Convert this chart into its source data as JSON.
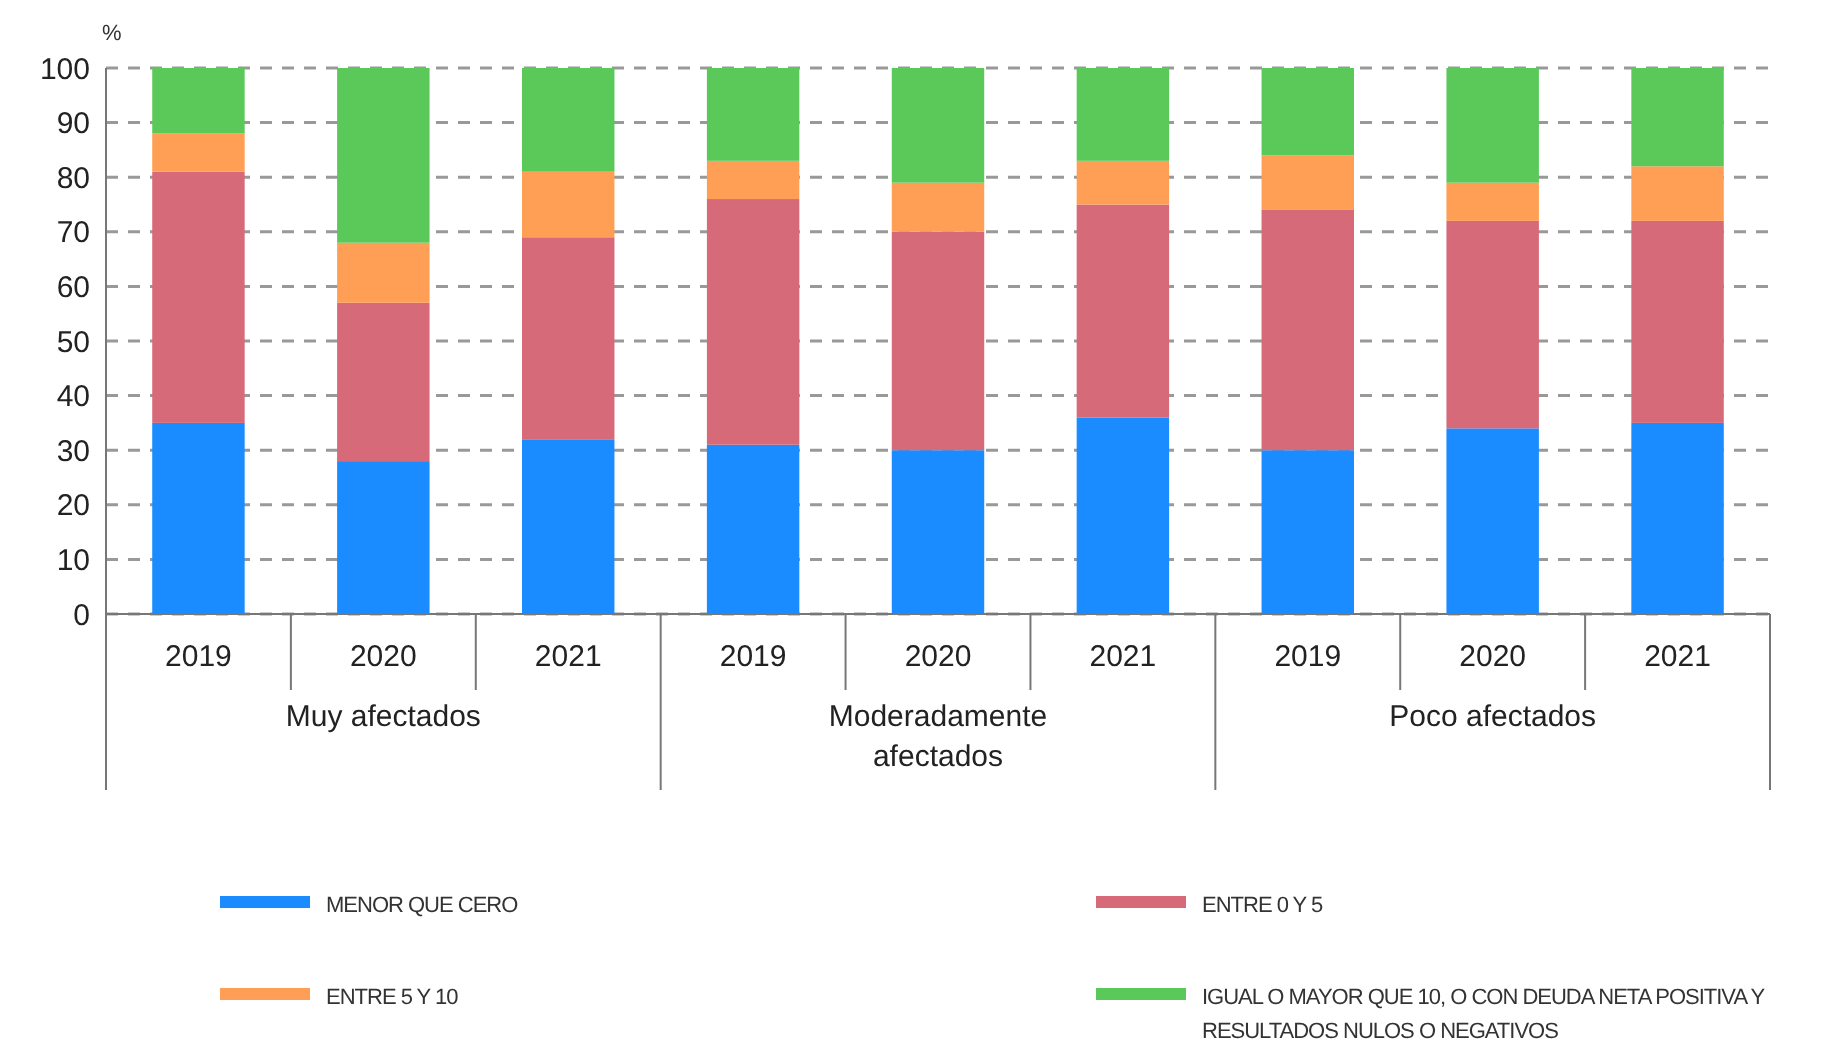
{
  "chart_data": {
    "type": "bar",
    "stacked": true,
    "ylabel": "%",
    "categories": [
      "2019",
      "2020",
      "2021",
      "2019",
      "2020",
      "2021",
      "2019",
      "2020",
      "2021"
    ],
    "series": [
      {
        "name": "MENOR QUE CERO",
        "color": "#1a8cff",
        "values": [
          35,
          28,
          32,
          31,
          30,
          36,
          30,
          34,
          35
        ]
      },
      {
        "name": "ENTRE 0 Y 5",
        "color": "#d66a78",
        "values": [
          46,
          29,
          37,
          45,
          40,
          39,
          44,
          38,
          37
        ]
      },
      {
        "name": "ENTRE 5 Y 10",
        "color": "#ff9f55",
        "values": [
          7,
          11,
          12,
          7,
          9,
          8,
          10,
          7,
          10
        ]
      },
      {
        "name": "IGUAL O MAYOR QUE 10, O CON DEUDA NETA POSITIVA Y RESULTADOS NULOS O NEGATIVOS",
        "color": "#5bc85a",
        "values": [
          12,
          32,
          19,
          17,
          21,
          17,
          16,
          21,
          18
        ]
      }
    ],
    "annotations": [
      "Muy afectados",
      "Moderadamente afectados",
      "Poco afectados"
    ],
    "ylim": [
      0,
      100
    ],
    "yticks": [
      0,
      10,
      20,
      30,
      40,
      50,
      60,
      70,
      80,
      90,
      100
    ],
    "grid": "y",
    "legend": "bottom"
  }
}
